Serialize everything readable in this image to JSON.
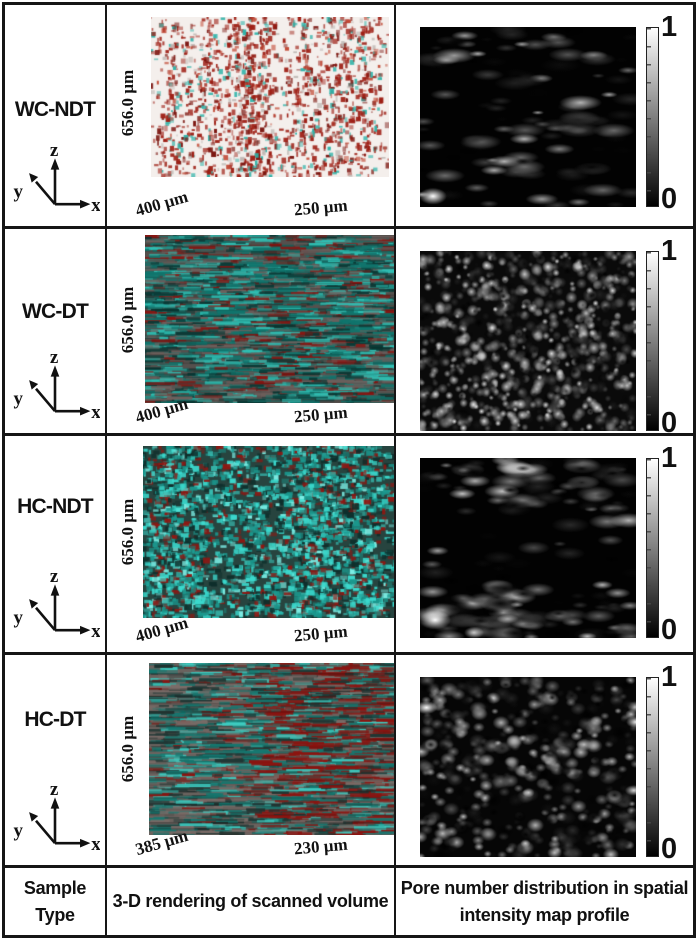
{
  "figure": {
    "axes": {
      "x": "x",
      "y": "y",
      "z": "z"
    },
    "footer": {
      "sample_type": "Sample Type",
      "render_col": "3-D rendering of scanned volume",
      "map_col": "Pore number distribution in spatial intensity map profile"
    },
    "colors": {
      "pore_red": "#9c1d13",
      "crack_cyan": "#2cb4aa",
      "border": "#161616",
      "colorbar_top": "#ffffff",
      "colorbar_bottom": "#000000"
    },
    "rows": [
      {
        "sample": "WC-NDT",
        "height_dim": "656.0 µm",
        "side_dim": "400 µm",
        "front_dim": "250 µm",
        "colorbar_max": "1",
        "colorbar_min": "0",
        "render": {
          "block": false,
          "bg": "#f4efec",
          "dir": "v",
          "streaks": 7,
          "spread": 24,
          "count": 1600,
          "wmin": 1.5,
          "wmax": 5,
          "hmin": 1.5,
          "hmax": 6,
          "palette": [
            {
              "c": "#9e1f15",
              "w": 0.48
            },
            {
              "c": "#7a130d",
              "w": 0.18
            },
            {
              "c": "#c24a36",
              "w": 0.08
            },
            {
              "c": "#2fb3a9",
              "w": 0.16
            },
            {
              "c": "#c2bcb8",
              "w": 0.1
            }
          ]
        },
        "map": {
          "bg": "#020202",
          "count": 120,
          "dir": "h",
          "rmin": 6,
          "rmax": 22,
          "sy": 0.35,
          "max": 0.8,
          "pow": 2.2,
          "hot": [
            {
              "x": 0.06,
              "y": 0.94,
              "r": 14,
              "v": 1
            }
          ]
        }
      },
      {
        "sample": "WC-DT",
        "height_dim": "656.0 µm",
        "side_dim": "400 µm",
        "front_dim": "250 µm",
        "colorbar_max": "1",
        "colorbar_min": "0",
        "render": {
          "block": true,
          "base": "#55504d",
          "dir": "h",
          "bands": true,
          "count": 2600,
          "wmin": 6,
          "wmax": 30,
          "hmin": 1.5,
          "hmax": 3.5,
          "palette": [
            {
              "c": "#11756d",
              "w": 0.3
            },
            {
              "c": "#2fc0b4",
              "w": 0.2
            },
            {
              "c": "#0b3a36",
              "w": 0.2
            },
            {
              "c": "#8a1410",
              "w": 0.12
            },
            {
              "c": "#6e5f5c",
              "w": 0.18
            }
          ]
        },
        "map": {
          "bg": "#0a0a0a",
          "count": 950,
          "dir": "n",
          "rmin": 2.5,
          "rmax": 6.5,
          "sy": 1,
          "max": 1,
          "pow": 1.6,
          "hot": []
        }
      },
      {
        "sample": "HC-NDT",
        "height_dim": "656.0 µm",
        "side_dim": "400 µm",
        "front_dim": "250 µm",
        "colorbar_max": "1",
        "colorbar_min": "0",
        "render": {
          "block": true,
          "base": "#27443f",
          "dir": "v",
          "streaks": 6,
          "spread": 38,
          "count": 3000,
          "wmin": 2,
          "wmax": 8,
          "hmin": 2,
          "hmax": 6,
          "palette": [
            {
              "c": "#3bd9cd",
              "w": 0.28
            },
            {
              "c": "#1b978d",
              "w": 0.3
            },
            {
              "c": "#0e2f2c",
              "w": 0.18
            },
            {
              "c": "#8f1712",
              "w": 0.16
            },
            {
              "c": "#7ceee5",
              "w": 0.08
            }
          ]
        },
        "map": {
          "bg": "#020202",
          "count": 190,
          "dir": "h",
          "rmin": 6,
          "rmax": 20,
          "sy": 0.4,
          "max": 0.85,
          "pow": 2,
          "edge": true,
          "hot": [
            {
              "x": 0.07,
              "y": 0.9,
              "r": 16,
              "v": 1
            },
            {
              "x": 0.25,
              "y": 0.97,
              "r": 10,
              "v": 0.8
            }
          ]
        }
      },
      {
        "sample": "HC-DT",
        "height_dim": "656.0 µm",
        "side_dim": "385 µm",
        "front_dim": "230 µm",
        "colorbar_max": "1",
        "colorbar_min": "0",
        "render": {
          "block": true,
          "base": "#6a625e",
          "dir": "h",
          "bands": true,
          "count": 2400,
          "wmin": 7,
          "wmax": 34,
          "hmin": 1.5,
          "hmax": 3.5,
          "palette": [
            {
              "c": "#15776f",
              "w": 0.26
            },
            {
              "c": "#3ecdc2",
              "w": 0.12
            },
            {
              "c": "#203734",
              "w": 0.2
            },
            {
              "c": "#8c1410",
              "w": 0.26,
              "bias": "right"
            },
            {
              "c": "#7b6c68",
              "w": 0.16
            }
          ]
        },
        "map": {
          "bg": "#060606",
          "count": 520,
          "dir": "n",
          "rmin": 3.5,
          "rmax": 9,
          "sy": 0.8,
          "max": 0.9,
          "pow": 1.9,
          "hot": [
            {
              "x": 0.03,
              "y": 0.17,
              "r": 11,
              "v": 1
            },
            {
              "x": 1.0,
              "y": 0.25,
              "r": 10,
              "v": 0.95
            },
            {
              "x": 0.99,
              "y": 0.63,
              "r": 9,
              "v": 0.85
            }
          ]
        }
      }
    ]
  }
}
